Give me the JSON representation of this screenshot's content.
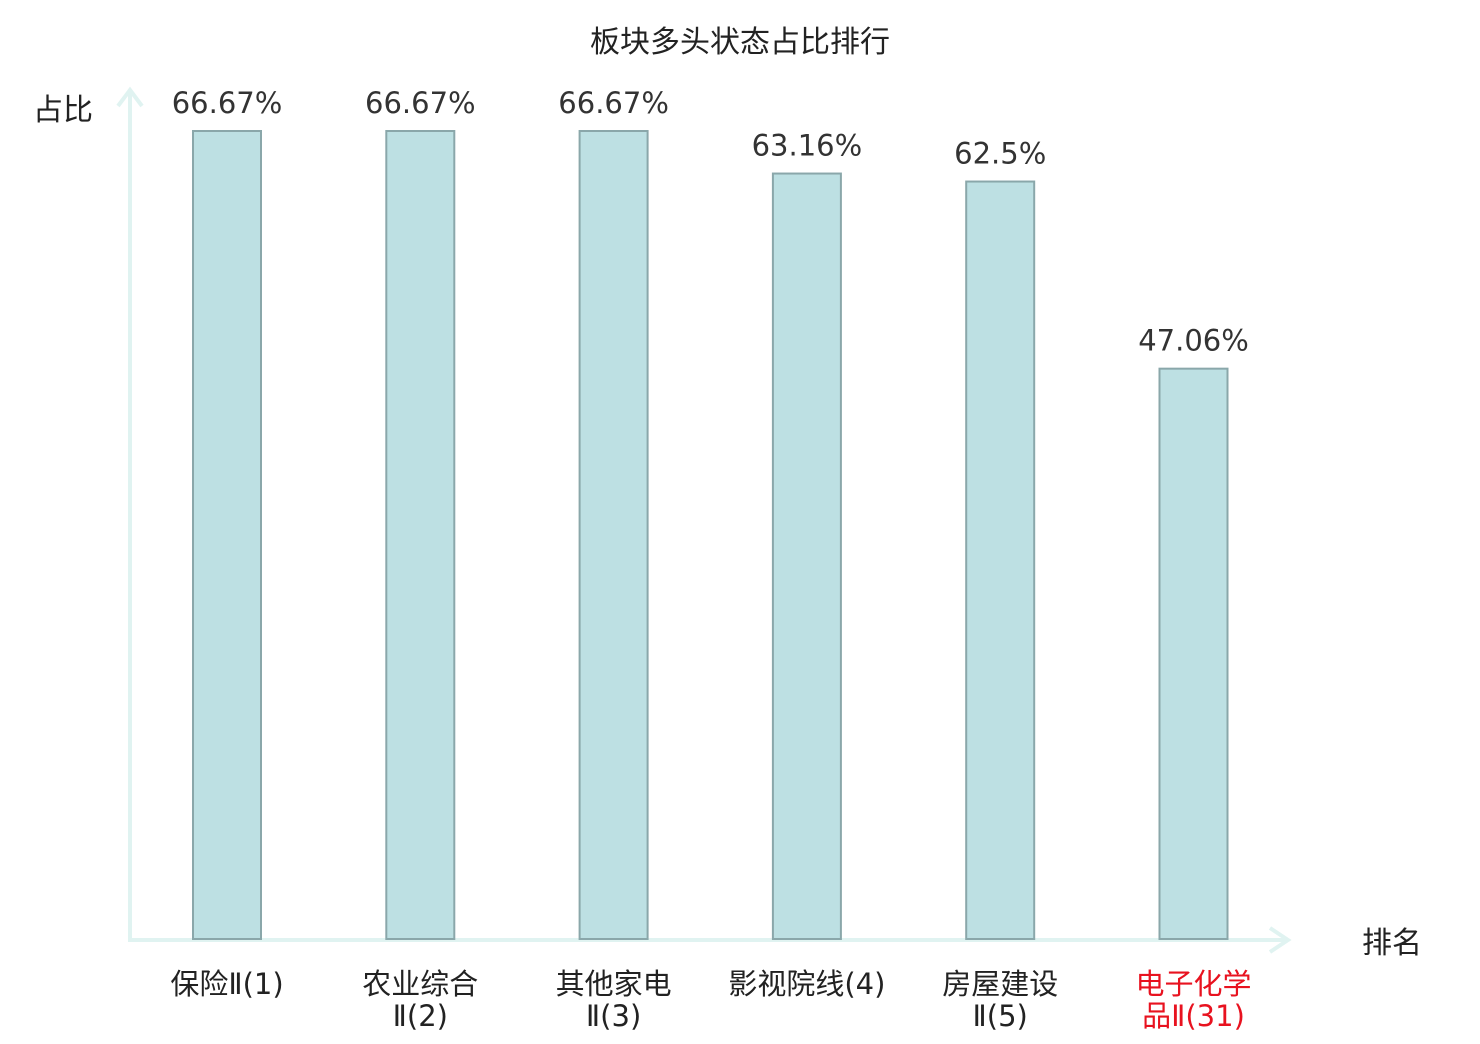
{
  "chart_data": {
    "type": "bar",
    "title": "板块多头状态占比排行",
    "ylabel": "占比",
    "xlabel": "排名",
    "ylim": [
      0,
      70
    ],
    "grid": false,
    "categories": [
      [
        "保险Ⅱ(1)"
      ],
      [
        "农业综合",
        "Ⅱ(2)"
      ],
      [
        "其他家电",
        "Ⅱ(3)"
      ],
      [
        "影视院线(4)"
      ],
      [
        "房屋建设",
        "Ⅱ(5)"
      ],
      [
        "电子化学",
        "品Ⅱ(31)"
      ]
    ],
    "values": [
      66.67,
      66.67,
      66.67,
      63.16,
      62.5,
      47.06
    ],
    "value_labels": [
      "66.67%",
      "66.67%",
      "66.67%",
      "63.16%",
      "62.5%",
      "47.06%"
    ],
    "highlight_index": 5
  },
  "colors": {
    "bar_fill": "#bde0e3",
    "bar_stroke": "#8aa7aa",
    "axis": "#e0f3f1",
    "text": "#333333",
    "label": "#222222",
    "highlight": "#e8121f"
  }
}
